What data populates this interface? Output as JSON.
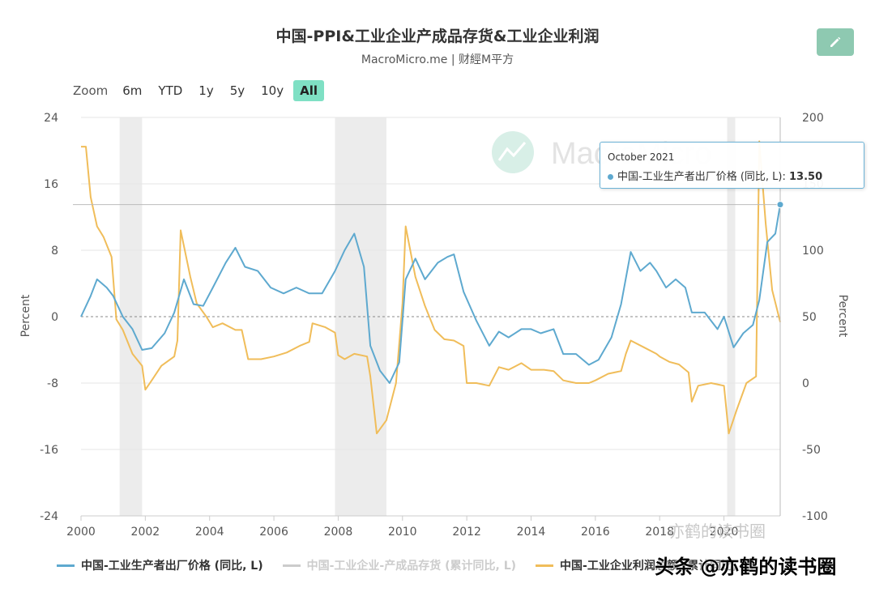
{
  "header": {
    "title": "中国-PPI&工业企业产成品存货&工业企业利润",
    "subtitle": "MacroMicro.me | 财經M平方"
  },
  "zoom": {
    "label": "Zoom",
    "options": [
      "6m",
      "YTD",
      "1y",
      "5y",
      "10y",
      "All"
    ],
    "active": "All"
  },
  "tooltip": {
    "date": "October 2021",
    "series": "中国-工业生产者出厂价格 (同比, L):",
    "value": "13.50"
  },
  "chart_watermark": "MacroMicro",
  "footer_watermark": "头条 @亦鹤的读书圈",
  "faint_watermark": "亦鹤的读书圈",
  "colors": {
    "ppi": "#5ea9cf",
    "inventory": "#c8c8c8",
    "profit": "#f0bd5a",
    "recession": "#ececec",
    "accent": "#7fe0c4"
  },
  "chart_data": {
    "type": "line",
    "xlabel": "",
    "ylabel_left": "Percent",
    "ylabel_right": "Percent",
    "ylim_left": [
      -24,
      24
    ],
    "ylim_right": [
      -100,
      200
    ],
    "yticks_left": [
      24,
      16,
      8,
      0,
      -8,
      -16,
      -24
    ],
    "yticks_right": [
      200,
      150,
      100,
      50,
      0,
      -50,
      -100
    ],
    "xticks": [
      2000,
      2002,
      2004,
      2006,
      2008,
      2010,
      2012,
      2014,
      2016,
      2018,
      2020
    ],
    "xlim": [
      2000.0,
      2021.75
    ],
    "grid": true,
    "legend_position": "bottom",
    "recession_bands": [
      [
        2001.2,
        2001.9
      ],
      [
        2007.9,
        2009.5
      ],
      [
        2020.1,
        2020.35
      ]
    ],
    "series": [
      {
        "name": "中国-工业生产者出厂价格 (同比, L)",
        "axis": "left",
        "points": [
          [
            2000.0,
            0.0
          ],
          [
            2000.3,
            2.5
          ],
          [
            2000.5,
            4.5
          ],
          [
            2000.8,
            3.5
          ],
          [
            2001.0,
            2.5
          ],
          [
            2001.3,
            0.0
          ],
          [
            2001.6,
            -1.5
          ],
          [
            2001.9,
            -4.0
          ],
          [
            2002.2,
            -3.8
          ],
          [
            2002.6,
            -2.0
          ],
          [
            2002.9,
            0.5
          ],
          [
            2003.2,
            4.5
          ],
          [
            2003.5,
            1.5
          ],
          [
            2003.8,
            1.3
          ],
          [
            2004.1,
            3.5
          ],
          [
            2004.5,
            6.5
          ],
          [
            2004.8,
            8.3
          ],
          [
            2005.1,
            6.0
          ],
          [
            2005.5,
            5.5
          ],
          [
            2005.9,
            3.5
          ],
          [
            2006.3,
            2.8
          ],
          [
            2006.7,
            3.5
          ],
          [
            2007.1,
            2.8
          ],
          [
            2007.5,
            2.8
          ],
          [
            2007.9,
            5.5
          ],
          [
            2008.2,
            8.0
          ],
          [
            2008.5,
            10.0
          ],
          [
            2008.8,
            6.0
          ],
          [
            2009.0,
            -3.5
          ],
          [
            2009.3,
            -6.5
          ],
          [
            2009.6,
            -8.0
          ],
          [
            2009.9,
            -5.5
          ],
          [
            2010.1,
            4.5
          ],
          [
            2010.4,
            7.0
          ],
          [
            2010.7,
            4.5
          ],
          [
            2011.1,
            6.5
          ],
          [
            2011.4,
            7.2
          ],
          [
            2011.6,
            7.5
          ],
          [
            2011.9,
            3.0
          ],
          [
            2012.3,
            -0.5
          ],
          [
            2012.7,
            -3.5
          ],
          [
            2013.0,
            -1.8
          ],
          [
            2013.3,
            -2.5
          ],
          [
            2013.7,
            -1.5
          ],
          [
            2014.0,
            -1.5
          ],
          [
            2014.3,
            -2.0
          ],
          [
            2014.7,
            -1.5
          ],
          [
            2015.0,
            -4.5
          ],
          [
            2015.4,
            -4.5
          ],
          [
            2015.8,
            -5.8
          ],
          [
            2016.1,
            -5.2
          ],
          [
            2016.5,
            -2.5
          ],
          [
            2016.8,
            1.5
          ],
          [
            2017.1,
            7.8
          ],
          [
            2017.4,
            5.5
          ],
          [
            2017.7,
            6.5
          ],
          [
            2017.9,
            5.5
          ],
          [
            2018.2,
            3.5
          ],
          [
            2018.5,
            4.5
          ],
          [
            2018.8,
            3.5
          ],
          [
            2019.0,
            0.5
          ],
          [
            2019.4,
            0.5
          ],
          [
            2019.8,
            -1.5
          ],
          [
            2020.0,
            0.0
          ],
          [
            2020.3,
            -3.7
          ],
          [
            2020.6,
            -2.0
          ],
          [
            2020.9,
            -1.0
          ],
          [
            2021.1,
            2.0
          ],
          [
            2021.35,
            9.0
          ],
          [
            2021.6,
            10.0
          ],
          [
            2021.75,
            13.5
          ]
        ]
      },
      {
        "name": "中国-工业企业-产成品存货 (累计同比, L)",
        "axis": "left",
        "points": []
      },
      {
        "name": "中国-工业企业利润总额 (累计同比, R)",
        "axis": "right",
        "points": [
          [
            2000.0,
            178
          ],
          [
            2000.15,
            178
          ],
          [
            2000.3,
            140
          ],
          [
            2000.5,
            118
          ],
          [
            2000.7,
            110
          ],
          [
            2000.95,
            95
          ],
          [
            2001.1,
            48
          ],
          [
            2001.3,
            40
          ],
          [
            2001.6,
            22
          ],
          [
            2001.9,
            13
          ],
          [
            2002.0,
            -5
          ],
          [
            2002.2,
            2
          ],
          [
            2002.5,
            13
          ],
          [
            2002.9,
            20
          ],
          [
            2003.0,
            32
          ],
          [
            2003.1,
            115
          ],
          [
            2003.4,
            80
          ],
          [
            2003.6,
            60
          ],
          [
            2003.9,
            50
          ],
          [
            2004.1,
            42
          ],
          [
            2004.4,
            45
          ],
          [
            2004.8,
            40
          ],
          [
            2005.0,
            40
          ],
          [
            2005.2,
            18
          ],
          [
            2005.6,
            18
          ],
          [
            2006.0,
            20
          ],
          [
            2006.4,
            23
          ],
          [
            2006.8,
            28
          ],
          [
            2007.1,
            31
          ],
          [
            2007.2,
            45
          ],
          [
            2007.6,
            42
          ],
          [
            2007.9,
            38
          ],
          [
            2008.0,
            21
          ],
          [
            2008.2,
            18
          ],
          [
            2008.5,
            22
          ],
          [
            2008.9,
            20
          ],
          [
            2009.0,
            5
          ],
          [
            2009.2,
            -38
          ],
          [
            2009.5,
            -28
          ],
          [
            2009.8,
            0
          ],
          [
            2010.0,
            60
          ],
          [
            2010.1,
            118
          ],
          [
            2010.4,
            80
          ],
          [
            2010.7,
            58
          ],
          [
            2011.0,
            40
          ],
          [
            2011.3,
            33
          ],
          [
            2011.6,
            32
          ],
          [
            2011.9,
            28
          ],
          [
            2012.0,
            0
          ],
          [
            2012.3,
            0
          ],
          [
            2012.7,
            -2
          ],
          [
            2013.0,
            12
          ],
          [
            2013.3,
            10
          ],
          [
            2013.7,
            15
          ],
          [
            2014.0,
            10
          ],
          [
            2014.4,
            10
          ],
          [
            2014.7,
            9
          ],
          [
            2015.0,
            2
          ],
          [
            2015.4,
            0
          ],
          [
            2015.8,
            0
          ],
          [
            2016.0,
            2
          ],
          [
            2016.4,
            7
          ],
          [
            2016.8,
            9
          ],
          [
            2016.95,
            22
          ],
          [
            2017.1,
            32
          ],
          [
            2017.5,
            27
          ],
          [
            2017.9,
            22
          ],
          [
            2018.0,
            20
          ],
          [
            2018.3,
            16
          ],
          [
            2018.6,
            14
          ],
          [
            2018.9,
            8
          ],
          [
            2019.0,
            -14
          ],
          [
            2019.2,
            -2
          ],
          [
            2019.6,
            0
          ],
          [
            2020.0,
            -2
          ],
          [
            2020.15,
            -38
          ],
          [
            2020.4,
            -20
          ],
          [
            2020.7,
            0
          ],
          [
            2021.0,
            5
          ],
          [
            2021.1,
            182
          ],
          [
            2021.3,
            120
          ],
          [
            2021.5,
            70
          ],
          [
            2021.75,
            46
          ]
        ]
      }
    ]
  }
}
